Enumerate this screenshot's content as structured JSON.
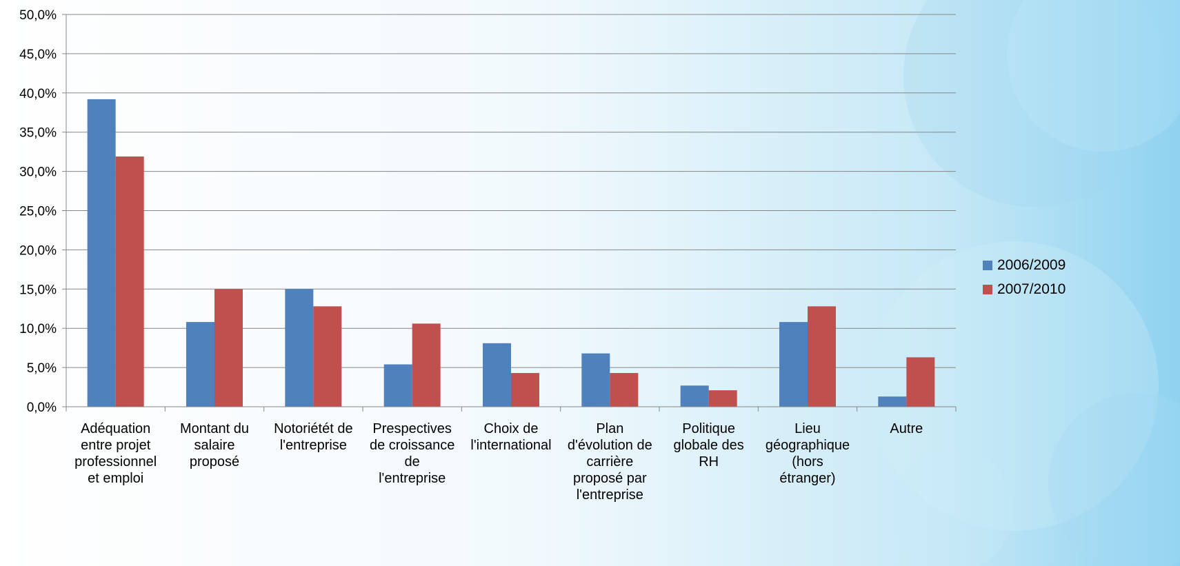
{
  "chart_data": {
    "type": "bar",
    "categories": [
      [
        "Adéquation",
        "entre projet",
        "professionnel",
        "et emploi"
      ],
      [
        "Montant du",
        "salaire",
        "proposé"
      ],
      [
        "Notoriétét de",
        "l'entreprise"
      ],
      [
        "Prespectives",
        "de croissance",
        "de",
        "l'entreprise"
      ],
      [
        "Choix de",
        "l'international"
      ],
      [
        "Plan",
        "d'évolution de",
        "carrière",
        "proposé par",
        "l'entreprise"
      ],
      [
        "Politique",
        "globale des",
        "RH"
      ],
      [
        "Lieu",
        "géographique",
        "(hors",
        "étranger)"
      ],
      [
        "Autre"
      ]
    ],
    "series": [
      {
        "name": "2006/2009",
        "color": "#4F81BD",
        "values": [
          39.2,
          10.8,
          15.0,
          5.4,
          8.1,
          6.8,
          2.7,
          10.8,
          1.3
        ]
      },
      {
        "name": "2007/2010",
        "color": "#C0504D",
        "values": [
          31.9,
          15.0,
          12.8,
          10.6,
          4.3,
          4.3,
          2.1,
          12.8,
          6.3
        ]
      }
    ],
    "ylim": [
      0,
      50
    ],
    "ytick_step": 5,
    "ytick_labels": [
      "0,0%",
      "5,0%",
      "10,0%",
      "15,0%",
      "20,0%",
      "25,0%",
      "30,0%",
      "35,0%",
      "40,0%",
      "45,0%",
      "50,0%"
    ],
    "grid": true,
    "legend_position": "right",
    "title": "",
    "xlabel": "",
    "ylabel": ""
  }
}
